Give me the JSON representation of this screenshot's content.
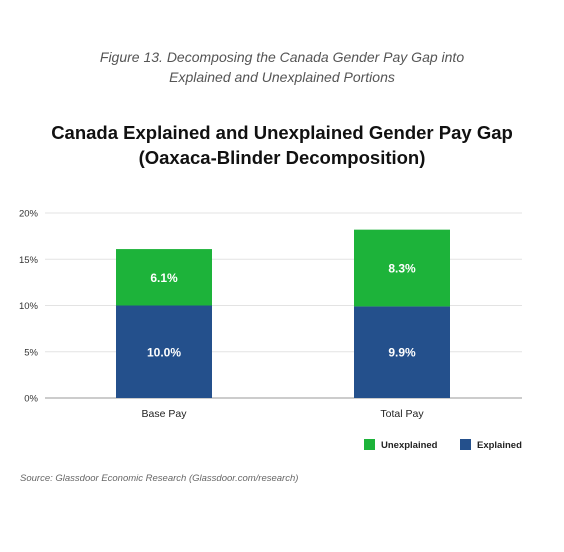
{
  "caption": {
    "line1": "Figure 13. Decomposing the Canada Gender Pay Gap into",
    "line2": "Explained and Unexplained Portions"
  },
  "source": "Source: Glassdoor Economic Research (Glassdoor.com/research)",
  "chart_data": {
    "type": "bar",
    "stacked": true,
    "title": [
      "Canada Explained and Unexplained Gender Pay Gap",
      "(Oaxaca-Blinder Decomposition)"
    ],
    "categories": [
      "Base Pay",
      "Total Pay"
    ],
    "series": [
      {
        "name": "Explained",
        "values": [
          10.0,
          9.9
        ],
        "labels": [
          "10.0%",
          "9.9%"
        ],
        "color": "#24508C"
      },
      {
        "name": "Unexplained",
        "values": [
          6.1,
          8.3
        ],
        "labels": [
          "6.1%",
          "8.3%"
        ],
        "color": "#1DB33A"
      }
    ],
    "ylim": [
      0,
      20
    ],
    "yticks": [
      0,
      5,
      10,
      15,
      20
    ],
    "ytick_labels": [
      "0%",
      "5%",
      "10%",
      "15%",
      "20%"
    ],
    "grid": true,
    "legend_position": "bottom-right",
    "legend_order": [
      "Unexplained",
      "Explained"
    ]
  }
}
